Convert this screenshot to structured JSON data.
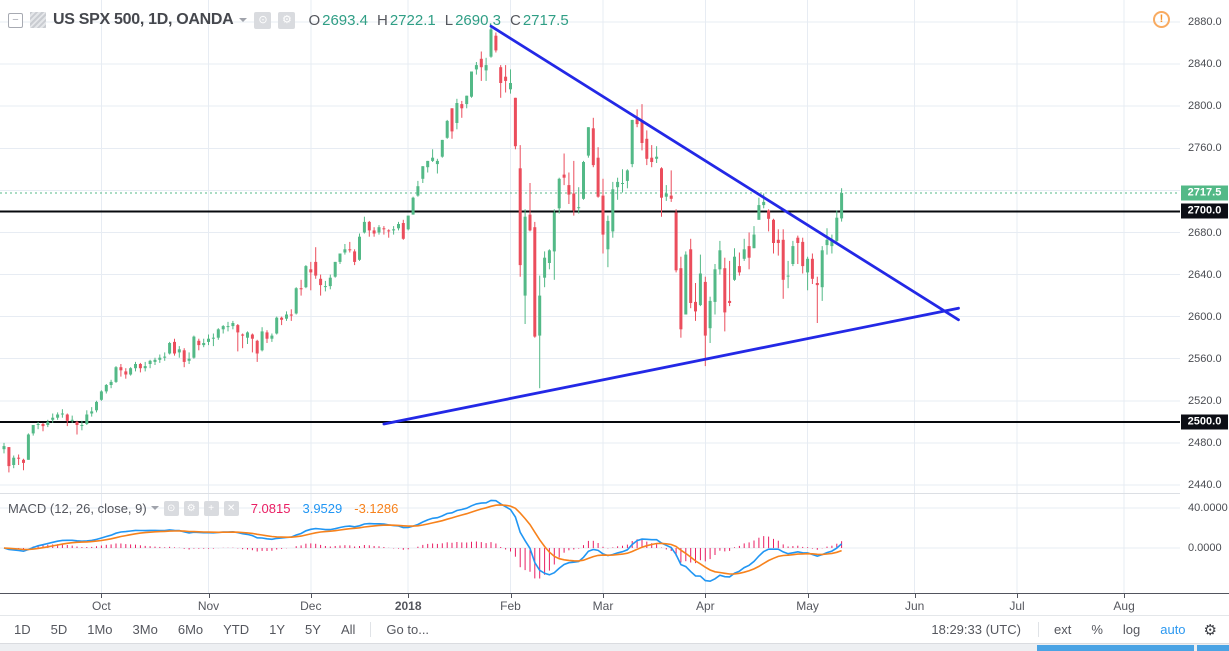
{
  "header": {
    "title": "US SPX 500, 1D, OANDA",
    "ohlc": [
      {
        "label": "O",
        "value": "2693.4"
      },
      {
        "label": "H",
        "value": "2722.1"
      },
      {
        "label": "L",
        "value": "2690.3"
      },
      {
        "label": "C",
        "value": "2717.5"
      }
    ]
  },
  "indicator": {
    "label": "MACD (12, 26, close, 9)",
    "histogram_value": "7.0815",
    "macd_value": "3.9529",
    "signal_value": "-3.1286"
  },
  "icons": {
    "collapse": "−",
    "dot_circle": "⊙",
    "gear": "⚙",
    "plus": "+",
    "close": "✕",
    "warning": "!"
  },
  "toolbar": {
    "ranges": [
      "1D",
      "5D",
      "1Mo",
      "3Mo",
      "6Mo",
      "YTD",
      "1Y",
      "5Y",
      "All"
    ],
    "goto_label": "Go to...",
    "clock": "18:29:33 (UTC)",
    "ext_label": "ext",
    "percent_label": "%",
    "log_label": "log",
    "auto_label": "auto"
  },
  "colors": {
    "up": "#53b987",
    "down": "#eb4d5c",
    "trendline": "#2328e6",
    "histogram": "#e91e63",
    "macd_line": "#2196f3",
    "signal_line": "#f7821c",
    "accent_blue": "#2b98f0",
    "grid": "#e7ecf3",
    "warning_orange": "#f7941e",
    "last_price_label_bg": "#53b987",
    "level_label_bg": "#0c0e15",
    "level_line": "#07090d"
  },
  "chart_data": {
    "type": "candlestick",
    "symbol": "US SPX 500",
    "interval": "1D",
    "exchange": "OANDA",
    "last_candle_ohlc": {
      "open": 2693.4,
      "high": 2722.1,
      "low": 2690.3,
      "close": 2717.5
    },
    "price_axis_ticks": [
      {
        "text": "2880.0",
        "price": 2880
      },
      {
        "text": "2840.0",
        "price": 2840
      },
      {
        "text": "2800.0",
        "price": 2800
      },
      {
        "text": "2760.0",
        "price": 2760
      },
      {
        "text": "2680.0",
        "price": 2680
      },
      {
        "text": "2640.0",
        "price": 2640
      },
      {
        "text": "2600.0",
        "price": 2600
      },
      {
        "text": "2560.0",
        "price": 2560
      },
      {
        "text": "2520.0",
        "price": 2520
      },
      {
        "text": "2480.0",
        "price": 2480
      },
      {
        "text": "2440.0",
        "price": 2440
      }
    ],
    "macd_axis_ticks": [
      {
        "text": "40.0000",
        "value": 40
      },
      {
        "text": "0.0000",
        "value": 0
      }
    ],
    "month_ticks": [
      {
        "label": "Oct",
        "index": 20
      },
      {
        "label": "Nov",
        "index": 42
      },
      {
        "label": "Dec",
        "index": 63
      },
      {
        "label": "2018",
        "index": 83,
        "bold": true
      },
      {
        "label": "Feb",
        "index": 104
      },
      {
        "label": "Mar",
        "index": 123
      },
      {
        "label": "Apr",
        "index": 144
      },
      {
        "label": "May",
        "index": 165
      },
      {
        "label": "Jun",
        "index": 187
      },
      {
        "label": "Jul",
        "index": 208
      },
      {
        "label": "Aug",
        "index": 230
      }
    ],
    "levels": [
      {
        "price": 2700,
        "text": "2700.0"
      },
      {
        "price": 2500,
        "text": "2500.0"
      }
    ],
    "last_price": {
      "price": 2717.5,
      "text": "2717.5"
    },
    "trendlines": [
      {
        "from_index": 100,
        "from_price": 2876,
        "to_index": 196,
        "to_price": 2597
      },
      {
        "from_index": 78,
        "from_price": 2498,
        "to_index": 196,
        "to_price": 2608
      }
    ],
    "indicator_summary": {
      "name": "MACD",
      "params": [
        12,
        26,
        "close",
        9
      ],
      "histogram": 7.0815,
      "macd": 3.9529,
      "signal": -3.1286
    },
    "candles": [
      [
        2474,
        2480,
        2470,
        2477
      ],
      [
        2476,
        2476,
        2452,
        2458
      ],
      [
        2459,
        2468,
        2456,
        2466
      ],
      [
        2466,
        2469,
        2459,
        2465
      ],
      [
        2464,
        2465,
        2454,
        2461
      ],
      [
        2464,
        2489,
        2464,
        2488
      ],
      [
        2489,
        2497,
        2487,
        2497
      ],
      [
        2497,
        2500,
        2493,
        2498
      ],
      [
        2498,
        2499,
        2491,
        2496
      ],
      [
        2497,
        2502,
        2495,
        2500
      ],
      [
        2502,
        2508,
        2499,
        2504
      ],
      [
        2504,
        2509,
        2502,
        2507
      ],
      [
        2507,
        2512,
        2504,
        2508
      ],
      [
        2507,
        2508,
        2496,
        2501
      ],
      [
        2501,
        2506,
        2499,
        2502
      ],
      [
        2500,
        2501,
        2488,
        2497
      ],
      [
        2497,
        2501,
        2492,
        2497
      ],
      [
        2498,
        2511,
        2497,
        2507
      ],
      [
        2508,
        2514,
        2505,
        2510
      ],
      [
        2511,
        2520,
        2509,
        2519
      ],
      [
        2521,
        2530,
        2520,
        2529
      ],
      [
        2529,
        2536,
        2527,
        2535
      ],
      [
        2535,
        2540,
        2532,
        2538
      ],
      [
        2538,
        2553,
        2537,
        2552
      ],
      [
        2552,
        2555,
        2543,
        2549
      ],
      [
        2548,
        2551,
        2541,
        2545
      ],
      [
        2545,
        2552,
        2544,
        2551
      ],
      [
        2551,
        2557,
        2548,
        2555
      ],
      [
        2555,
        2556,
        2547,
        2551
      ],
      [
        2551,
        2557,
        2548,
        2553
      ],
      [
        2555,
        2559,
        2551,
        2558
      ],
      [
        2557,
        2561,
        2554,
        2559
      ],
      [
        2559,
        2564,
        2556,
        2561
      ],
      [
        2561,
        2566,
        2558,
        2562
      ],
      [
        2565,
        2576,
        2564,
        2575
      ],
      [
        2576,
        2579,
        2563,
        2565
      ],
      [
        2566,
        2572,
        2561,
        2569
      ],
      [
        2568,
        2570,
        2552,
        2557
      ],
      [
        2558,
        2566,
        2555,
        2560
      ],
      [
        2561,
        2582,
        2560,
        2581
      ],
      [
        2577,
        2579,
        2568,
        2573
      ],
      [
        2573,
        2579,
        2571,
        2575
      ],
      [
        2576,
        2583,
        2573,
        2579
      ],
      [
        2579,
        2584,
        2572,
        2580
      ],
      [
        2580,
        2589,
        2578,
        2588
      ],
      [
        2588,
        2592,
        2584,
        2591
      ],
      [
        2591,
        2595,
        2586,
        2591
      ],
      [
        2591,
        2596,
        2588,
        2594
      ],
      [
        2592,
        2593,
        2567,
        2585
      ],
      [
        2583,
        2584,
        2570,
        2582
      ],
      [
        2580,
        2586,
        2574,
        2585
      ],
      [
        2583,
        2584,
        2566,
        2579
      ],
      [
        2577,
        2578,
        2557,
        2565
      ],
      [
        2568,
        2590,
        2567,
        2586
      ],
      [
        2585,
        2587,
        2575,
        2579
      ],
      [
        2579,
        2584,
        2576,
        2582
      ],
      [
        2584,
        2600,
        2583,
        2599
      ],
      [
        2599,
        2600,
        2592,
        2597
      ],
      [
        2598,
        2605,
        2596,
        2602
      ],
      [
        2602,
        2607,
        2596,
        2601
      ],
      [
        2603,
        2628,
        2602,
        2627
      ],
      [
        2627,
        2635,
        2620,
        2626
      ],
      [
        2628,
        2649,
        2627,
        2648
      ],
      [
        2645,
        2652,
        2625,
        2642
      ],
      [
        2652,
        2666,
        2636,
        2639
      ],
      [
        2636,
        2640,
        2620,
        2630
      ],
      [
        2629,
        2634,
        2624,
        2629
      ],
      [
        2629,
        2640,
        2626,
        2637
      ],
      [
        2638,
        2652,
        2637,
        2652
      ],
      [
        2652,
        2660,
        2650,
        2660
      ],
      [
        2661,
        2669,
        2659,
        2664
      ],
      [
        2664,
        2671,
        2661,
        2663
      ],
      [
        2662,
        2664,
        2649,
        2652
      ],
      [
        2654,
        2679,
        2653,
        2676
      ],
      [
        2680,
        2695,
        2679,
        2690
      ],
      [
        2690,
        2691,
        2676,
        2682
      ],
      [
        2682,
        2685,
        2676,
        2679
      ],
      [
        2680,
        2687,
        2678,
        2685
      ],
      [
        2684,
        2686,
        2678,
        2683
      ],
      [
        2682,
        2683,
        2675,
        2681
      ],
      [
        2682,
        2686,
        2678,
        2683
      ],
      [
        2684,
        2690,
        2682,
        2688
      ],
      [
        2689,
        2692,
        2673,
        2674
      ],
      [
        2683,
        2696,
        2682,
        2696
      ],
      [
        2697,
        2714,
        2697,
        2713
      ],
      [
        2715,
        2729,
        2714,
        2724
      ],
      [
        2731,
        2743,
        2727,
        2743
      ],
      [
        2742,
        2748,
        2737,
        2748
      ],
      [
        2748,
        2759,
        2747,
        2751
      ],
      [
        2745,
        2750,
        2736,
        2748
      ],
      [
        2752,
        2768,
        2751,
        2768
      ],
      [
        2770,
        2787,
        2769,
        2786
      ],
      [
        2798,
        2798,
        2769,
        2776
      ],
      [
        2784,
        2807,
        2778,
        2803
      ],
      [
        2802,
        2805,
        2789,
        2798
      ],
      [
        2802,
        2810,
        2798,
        2810
      ],
      [
        2809,
        2833,
        2808,
        2833
      ],
      [
        2835,
        2842,
        2830,
        2839
      ],
      [
        2845,
        2852,
        2824,
        2837
      ],
      [
        2834,
        2846,
        2824,
        2839
      ],
      [
        2847,
        2877,
        2846,
        2873
      ],
      [
        2867,
        2870,
        2851,
        2853
      ],
      [
        2837,
        2839,
        2808,
        2822
      ],
      [
        2828,
        2839,
        2813,
        2824
      ],
      [
        2816,
        2835,
        2812,
        2822
      ],
      [
        2808,
        2808,
        2759,
        2762
      ],
      [
        2741,
        2763,
        2638,
        2649
      ],
      [
        2620,
        2702,
        2593,
        2695
      ],
      [
        2697,
        2727,
        2681,
        2682
      ],
      [
        2685,
        2690,
        2580,
        2581
      ],
      [
        2582,
        2639,
        2532,
        2620
      ],
      [
        2637,
        2662,
        2628,
        2656
      ],
      [
        2651,
        2664,
        2645,
        2663
      ],
      [
        2662,
        2702,
        2635,
        2699
      ],
      [
        2703,
        2732,
        2698,
        2731
      ],
      [
        2735,
        2755,
        2725,
        2732
      ],
      [
        2725,
        2737,
        2707,
        2716
      ],
      [
        2717,
        2748,
        2696,
        2701
      ],
      [
        2704,
        2723,
        2698,
        2704
      ],
      [
        2712,
        2748,
        2711,
        2747
      ],
      [
        2753,
        2780,
        2751,
        2780
      ],
      [
        2779,
        2789,
        2742,
        2744
      ],
      [
        2751,
        2761,
        2713,
        2714
      ],
      [
        2715,
        2731,
        2660,
        2678
      ],
      [
        2664,
        2696,
        2647,
        2691
      ],
      [
        2681,
        2728,
        2675,
        2721
      ],
      [
        2723,
        2732,
        2711,
        2728
      ],
      [
        2727,
        2740,
        2718,
        2727
      ],
      [
        2729,
        2740,
        2722,
        2739
      ],
      [
        2745,
        2787,
        2742,
        2787
      ],
      [
        2788,
        2797,
        2780,
        2783
      ],
      [
        2787,
        2802,
        2758,
        2765
      ],
      [
        2769,
        2777,
        2744,
        2750
      ],
      [
        2751,
        2763,
        2742,
        2747
      ],
      [
        2750,
        2762,
        2746,
        2752
      ],
      [
        2741,
        2742,
        2695,
        2713
      ],
      [
        2714,
        2725,
        2710,
        2717
      ],
      [
        2715,
        2739,
        2709,
        2712
      ],
      [
        2699,
        2702,
        2642,
        2644
      ],
      [
        2646,
        2657,
        2580,
        2588
      ],
      [
        2602,
        2662,
        2602,
        2659
      ],
      [
        2664,
        2674,
        2608,
        2613
      ],
      [
        2614,
        2632,
        2596,
        2605
      ],
      [
        2611,
        2659,
        2610,
        2641
      ],
      [
        2633,
        2638,
        2553,
        2582
      ],
      [
        2589,
        2619,
        2575,
        2615
      ],
      [
        2614,
        2650,
        2602,
        2645
      ],
      [
        2645,
        2672,
        2640,
        2663
      ],
      [
        2646,
        2656,
        2586,
        2604
      ],
      [
        2615,
        2653,
        2610,
        2613
      ],
      [
        2635,
        2665,
        2634,
        2657
      ],
      [
        2648,
        2661,
        2639,
        2642
      ],
      [
        2655,
        2674,
        2653,
        2664
      ],
      [
        2667,
        2680,
        2645,
        2656
      ],
      [
        2665,
        2686,
        2665,
        2678
      ],
      [
        2692,
        2713,
        2692,
        2706
      ],
      [
        2706,
        2717,
        2703,
        2709
      ],
      [
        2701,
        2702,
        2681,
        2693
      ],
      [
        2692,
        2693,
        2660,
        2670
      ],
      [
        2673,
        2683,
        2658,
        2670
      ],
      [
        2673,
        2683,
        2617,
        2635
      ],
      [
        2639,
        2653,
        2627,
        2639
      ],
      [
        2650,
        2672,
        2648,
        2667
      ],
      [
        2675,
        2677,
        2650,
        2670
      ],
      [
        2671,
        2675,
        2641,
        2648
      ],
      [
        2642,
        2657,
        2625,
        2655
      ],
      [
        2655,
        2660,
        2631,
        2636
      ],
      [
        2632,
        2638,
        2594,
        2630
      ],
      [
        2628,
        2667,
        2615,
        2663
      ],
      [
        2668,
        2684,
        2659,
        2673
      ],
      [
        2667,
        2678,
        2660,
        2672
      ],
      [
        2672,
        2701,
        2669,
        2694
      ],
      [
        2693.4,
        2722.1,
        2690.3,
        2717.5
      ]
    ]
  }
}
